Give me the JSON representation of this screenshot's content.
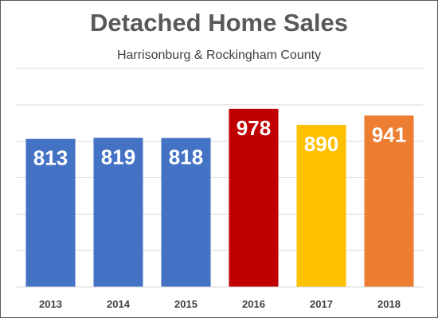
{
  "chart_data": {
    "type": "bar",
    "title": "Detached Home Sales",
    "subtitle": "Harrisonburg & Rockingham County",
    "xlabel": "",
    "ylabel": "",
    "categories": [
      "2013",
      "2014",
      "2015",
      "2016",
      "2017",
      "2018"
    ],
    "values": [
      813,
      819,
      818,
      978,
      890,
      941
    ],
    "bar_colors": [
      "#4472C4",
      "#4472C4",
      "#4472C4",
      "#C00000",
      "#FFC000",
      "#ED7D31"
    ],
    "ylim": [
      0,
      1200
    ],
    "grid": true,
    "gridline_step": 200,
    "data_labels": true,
    "legend": "none"
  }
}
